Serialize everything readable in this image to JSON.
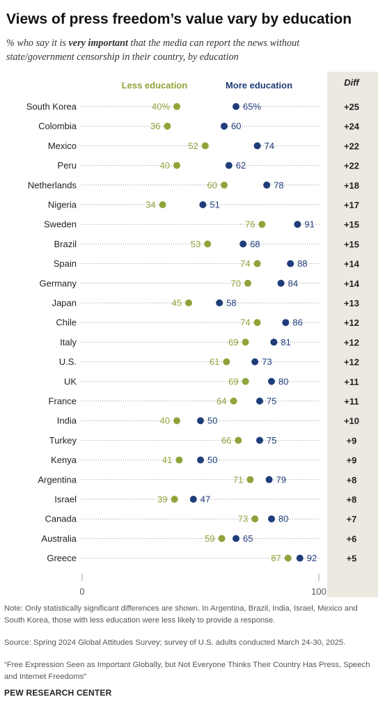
{
  "title": "Views of press freedom’s value vary by education",
  "subtitle": {
    "pre": "% who say it is ",
    "emph": "very important",
    "post": " that the media can report the news without state/government censorship in their country, by education"
  },
  "colors": {
    "less": "#8ea43a",
    "more": "#1f3d7a",
    "diff_bg": "#ece9e1",
    "dots_line": "#9a9a9a"
  },
  "chart_data": {
    "type": "scatter",
    "subtype": "dot-plot",
    "xlim": [
      0,
      100
    ],
    "x_ticks": [
      "0",
      "100"
    ],
    "diff_header": "Diff",
    "legend": {
      "less": "Less education",
      "more": "More education",
      "placement": "top"
    },
    "categories": [
      "South Korea",
      "Colombia",
      "Mexico",
      "Peru",
      "Netherlands",
      "Nigeria",
      "Sweden",
      "Brazil",
      "Spain",
      "Germany",
      "Japan",
      "Chile",
      "Italy",
      "U.S.",
      "UK",
      "France",
      "India",
      "Turkey",
      "Kenya",
      "Argentina",
      "Israel",
      "Canada",
      "Australia",
      "Greece"
    ],
    "series": [
      {
        "name": "Less education",
        "values": [
          40,
          36,
          52,
          40,
          60,
          34,
          76,
          53,
          74,
          70,
          45,
          74,
          69,
          61,
          69,
          64,
          40,
          66,
          41,
          71,
          39,
          73,
          59,
          87
        ]
      },
      {
        "name": "More education",
        "values": [
          65,
          60,
          74,
          62,
          78,
          51,
          91,
          68,
          88,
          84,
          58,
          86,
          81,
          73,
          80,
          75,
          50,
          75,
          50,
          79,
          47,
          80,
          65,
          92
        ]
      }
    ],
    "less_labels": [
      "40%",
      "36",
      "52",
      "40",
      "60",
      "34",
      "76",
      "53",
      "74",
      "70",
      "45",
      "74",
      "69",
      "61",
      "69",
      "64",
      "40",
      "66",
      "41",
      "71",
      "39",
      "73",
      "59",
      "87"
    ],
    "more_labels": [
      "65%",
      "60",
      "74",
      "62",
      "78",
      "51",
      "91",
      "68",
      "88",
      "84",
      "58",
      "86",
      "81",
      "73",
      "80",
      "75",
      "50",
      "75",
      "50",
      "79",
      "47",
      "80",
      "65",
      "92"
    ],
    "diff": [
      "+25",
      "+24",
      "+22",
      "+22",
      "+18",
      "+17",
      "+15",
      "+15",
      "+14",
      "+14",
      "+13",
      "+12",
      "+12",
      "+12",
      "+11",
      "+11",
      "+10",
      "+9",
      "+9",
      "+8",
      "+8",
      "+7",
      "+6",
      "+5"
    ]
  },
  "note": "Note: Only statistically significant differences are shown. In Argentina, Brazil, India, Israel, Mexico and South Korea, those with less education were less likely to provide a response.",
  "source": "Source: Spring 2024 Global Attitudes Survey; survey of U.S. adults conducted March 24-30, 2025.",
  "quote": "“Free Expression Seen as Important Globally, but Not Everyone Thinks Their Country Has Press, Speech and Internet Freedoms”",
  "brand": "PEW RESEARCH CENTER"
}
